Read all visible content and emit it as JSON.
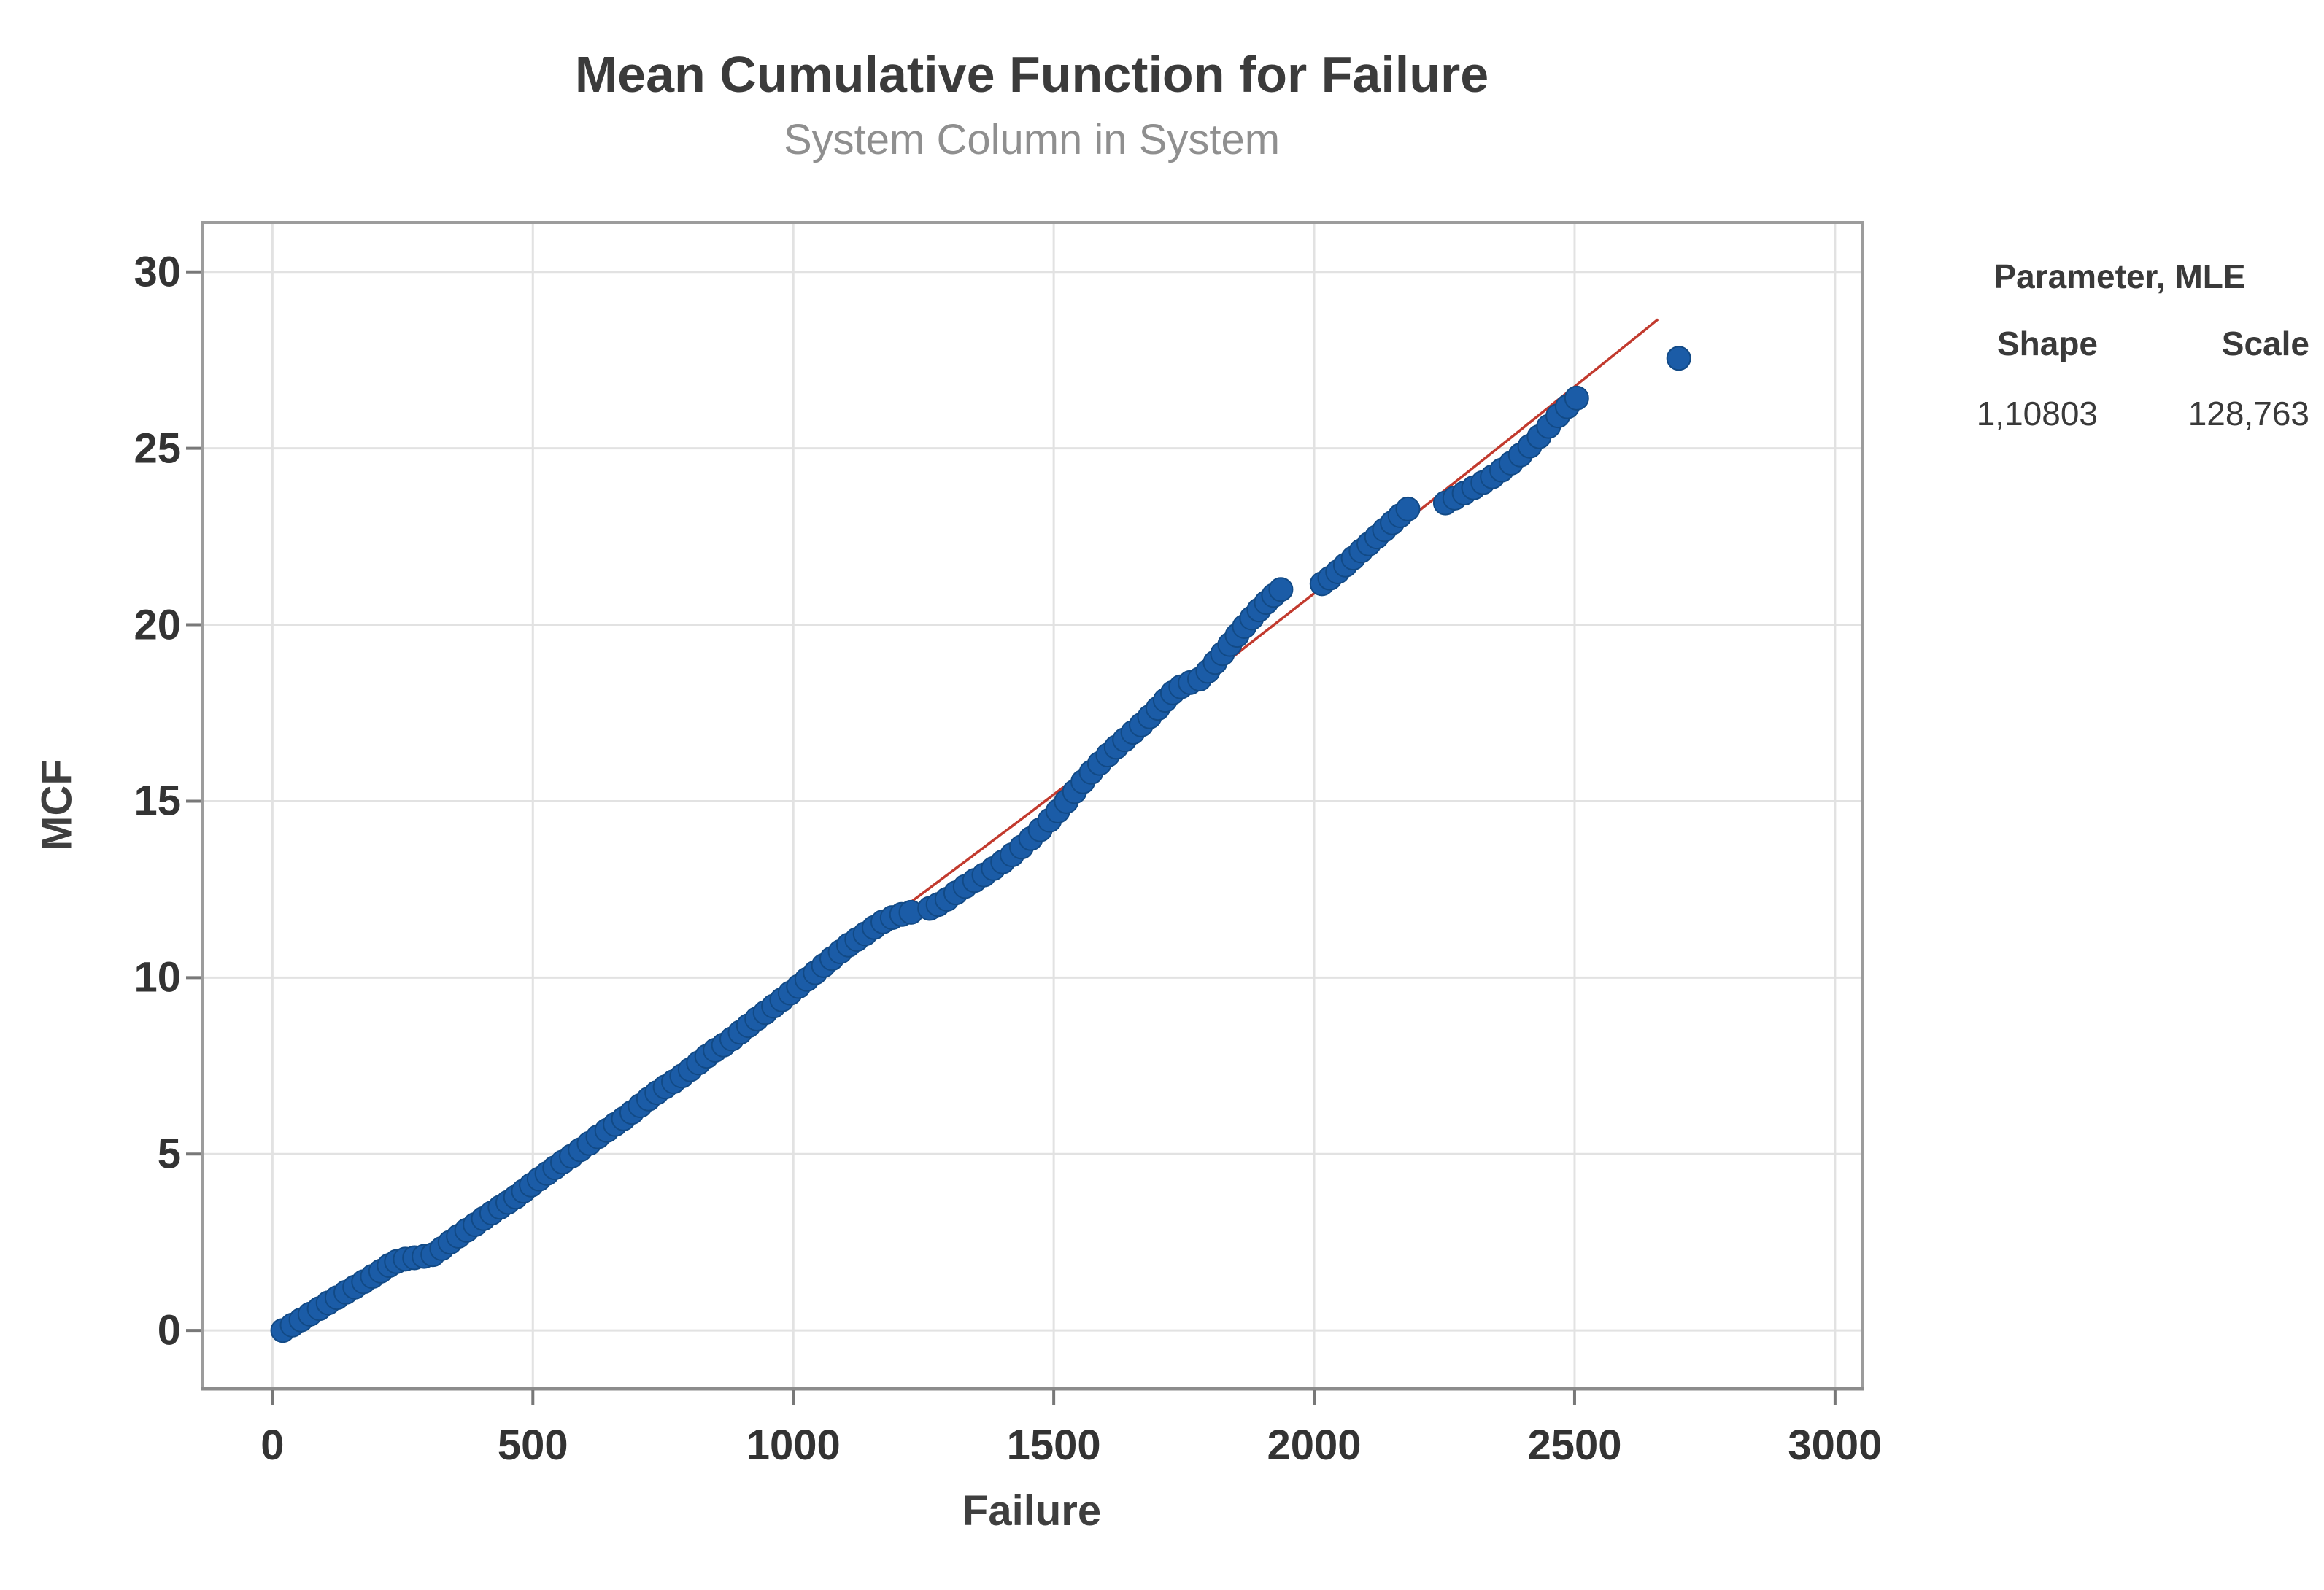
{
  "header": {
    "title": "Mean Cumulative Function for Failure",
    "subtitle": "System Column in System"
  },
  "legend_panel": {
    "header": "Parameter, MLE",
    "col_shape": "Shape",
    "col_scale": "Scale",
    "val_shape": "1,10803",
    "val_scale": "128,763"
  },
  "chart_data": {
    "type": "scatter",
    "title": "Mean Cumulative Function for Failure",
    "subtitle": "System Column in System",
    "xlabel": "Failure",
    "ylabel": "MCF",
    "grid": true,
    "legend_position": "right-outside",
    "x_axis": {
      "range": [
        -135,
        3052
      ],
      "ticks": [
        0,
        500,
        1000,
        1500,
        2000,
        2500,
        3000
      ]
    },
    "y_axis": {
      "range": [
        -1.65,
        31.4
      ],
      "ticks": [
        0,
        5,
        10,
        15,
        20,
        25,
        30
      ]
    },
    "colors": {
      "marker": "#1B5CA7",
      "marker_edge": "#124A86",
      "fit_line": "#C23A2E",
      "grid": "#E2E2E2",
      "frame": "#9C9C9C",
      "tick": "#787878"
    },
    "series": [
      {
        "name": "MCF",
        "type": "scatter",
        "points": [
          [
            20,
            0
          ],
          [
            38,
            0.15
          ],
          [
            55,
            0.3
          ],
          [
            72,
            0.46
          ],
          [
            90,
            0.62
          ],
          [
            107,
            0.78
          ],
          [
            124,
            0.93
          ],
          [
            141,
            1.08
          ],
          [
            158,
            1.23
          ],
          [
            175,
            1.38
          ],
          [
            192,
            1.53
          ],
          [
            208,
            1.68
          ],
          [
            224,
            1.84
          ],
          [
            238,
            1.95
          ],
          [
            255,
            2.02
          ],
          [
            273,
            2.06
          ],
          [
            291,
            2.1
          ],
          [
            308,
            2.15
          ],
          [
            325,
            2.32
          ],
          [
            341,
            2.5
          ],
          [
            357,
            2.67
          ],
          [
            373,
            2.84
          ],
          [
            389,
            3
          ],
          [
            405,
            3.17
          ],
          [
            421,
            3.33
          ],
          [
            437,
            3.49
          ],
          [
            452,
            3.63
          ],
          [
            467,
            3.78
          ],
          [
            482,
            3.95
          ],
          [
            497,
            4.12
          ],
          [
            512,
            4.29
          ],
          [
            527,
            4.45
          ],
          [
            542,
            4.61
          ],
          [
            557,
            4.77
          ],
          [
            574,
            4.94
          ],
          [
            591,
            5.12
          ],
          [
            608,
            5.3
          ],
          [
            625,
            5.49
          ],
          [
            642,
            5.67
          ],
          [
            658,
            5.84
          ],
          [
            674,
            6
          ],
          [
            690,
            6.18
          ],
          [
            706,
            6.37
          ],
          [
            722,
            6.56
          ],
          [
            738,
            6.74
          ],
          [
            754,
            6.9
          ],
          [
            770,
            7.05
          ],
          [
            786,
            7.21
          ],
          [
            802,
            7.39
          ],
          [
            818,
            7.58
          ],
          [
            834,
            7.77
          ],
          [
            850,
            7.94
          ],
          [
            866,
            8.09
          ],
          [
            882,
            8.26
          ],
          [
            898,
            8.45
          ],
          [
            914,
            8.64
          ],
          [
            930,
            8.83
          ],
          [
            946,
            9.01
          ],
          [
            962,
            9.19
          ],
          [
            978,
            9.37
          ],
          [
            994,
            9.56
          ],
          [
            1010,
            9.75
          ],
          [
            1026,
            9.95
          ],
          [
            1042,
            10.14
          ],
          [
            1058,
            10.34
          ],
          [
            1074,
            10.54
          ],
          [
            1090,
            10.73
          ],
          [
            1106,
            10.92
          ],
          [
            1122,
            11.08
          ],
          [
            1138,
            11.24
          ],
          [
            1155,
            11.42
          ],
          [
            1172,
            11.58
          ],
          [
            1190,
            11.7
          ],
          [
            1208,
            11.79
          ],
          [
            1226,
            11.85
          ],
          [
            1262,
            11.96
          ],
          [
            1278,
            12.07
          ],
          [
            1295,
            12.22
          ],
          [
            1312,
            12.4
          ],
          [
            1330,
            12.58
          ],
          [
            1348,
            12.75
          ],
          [
            1366,
            12.91
          ],
          [
            1384,
            13.09
          ],
          [
            1402,
            13.28
          ],
          [
            1420,
            13.48
          ],
          [
            1438,
            13.7
          ],
          [
            1456,
            13.94
          ],
          [
            1474,
            14.19
          ],
          [
            1492,
            14.46
          ],
          [
            1508,
            14.72
          ],
          [
            1524,
            14.99
          ],
          [
            1540,
            15.27
          ],
          [
            1556,
            15.55
          ],
          [
            1572,
            15.82
          ],
          [
            1588,
            16.07
          ],
          [
            1604,
            16.31
          ],
          [
            1620,
            16.53
          ],
          [
            1636,
            16.74
          ],
          [
            1652,
            16.95
          ],
          [
            1668,
            17.16
          ],
          [
            1684,
            17.39
          ],
          [
            1700,
            17.63
          ],
          [
            1714,
            17.86
          ],
          [
            1728,
            18.07
          ],
          [
            1744,
            18.24
          ],
          [
            1762,
            18.36
          ],
          [
            1780,
            18.46
          ],
          [
            1796,
            18.68
          ],
          [
            1810,
            18.93
          ],
          [
            1824,
            19.18
          ],
          [
            1838,
            19.44
          ],
          [
            1852,
            19.7
          ],
          [
            1866,
            19.95
          ],
          [
            1880,
            20.19
          ],
          [
            1894,
            20.42
          ],
          [
            1908,
            20.63
          ],
          [
            1922,
            20.83
          ],
          [
            1936,
            21
          ],
          [
            2015,
            21.16
          ],
          [
            2030,
            21.32
          ],
          [
            2045,
            21.5
          ],
          [
            2060,
            21.69
          ],
          [
            2075,
            21.89
          ],
          [
            2090,
            22.09
          ],
          [
            2105,
            22.29
          ],
          [
            2120,
            22.49
          ],
          [
            2135,
            22.69
          ],
          [
            2150,
            22.89
          ],
          [
            2165,
            23.09
          ],
          [
            2180,
            23.28
          ],
          [
            2252,
            23.45
          ],
          [
            2270,
            23.59
          ],
          [
            2288,
            23.73
          ],
          [
            2306,
            23.88
          ],
          [
            2324,
            24.03
          ],
          [
            2342,
            24.19
          ],
          [
            2360,
            24.38
          ],
          [
            2378,
            24.58
          ],
          [
            2396,
            24.81
          ],
          [
            2414,
            25.06
          ],
          [
            2432,
            25.33
          ],
          [
            2450,
            25.62
          ],
          [
            2468,
            25.92
          ],
          [
            2486,
            26.18
          ],
          [
            2504,
            26.42
          ],
          [
            2700,
            27.55
          ]
        ]
      },
      {
        "name": "Fitted power-law MCF",
        "type": "line",
        "model": "MCF(t) = (t/scale)^shape",
        "shape": 1.10803,
        "scale": 128.763,
        "t_range": [
          600,
          2660
        ]
      }
    ]
  }
}
